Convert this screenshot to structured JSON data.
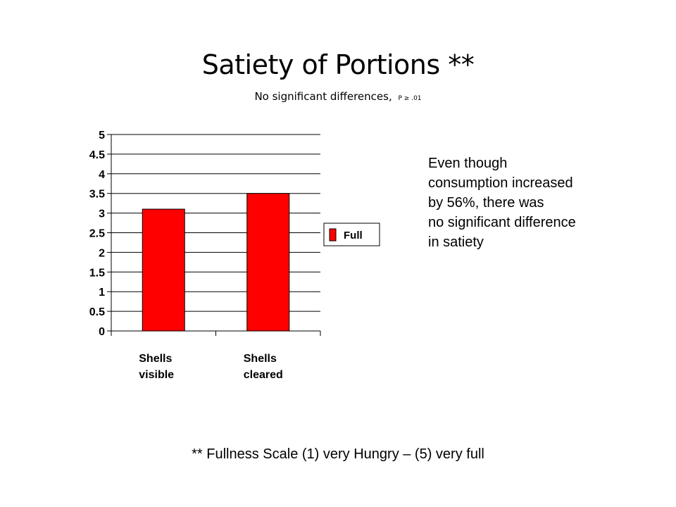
{
  "slide": {
    "title": "Satiety of Portions **",
    "subtitle_text": "No significant differences,",
    "subtitle_pvalue": "P ≥ .01",
    "note": "Even though\nconsumption increased\nby 56%, there was\nno significant difference\nin satiety",
    "footnote": "** Fullness Scale (1) very Hungry – (5) very full"
  },
  "chart_data": {
    "type": "bar",
    "categories": [
      [
        "Shells",
        "visible"
      ],
      [
        "Shells",
        "cleared"
      ]
    ],
    "series": [
      {
        "name": "Full",
        "values": [
          3.1,
          3.5
        ],
        "color": "#ff0000"
      }
    ],
    "ylim": [
      0,
      5
    ],
    "yticks": [
      "0",
      "0.5",
      "1",
      "1.5",
      "2",
      "2.5",
      "3",
      "3.5",
      "4",
      "4.5",
      "5"
    ],
    "grid": true,
    "legend_position": "right"
  }
}
